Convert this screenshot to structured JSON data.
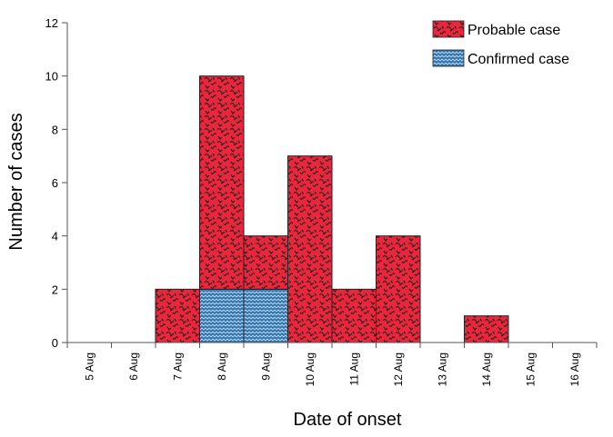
{
  "chart_data": {
    "type": "bar",
    "stacked": true,
    "xlabel": "Date of onset",
    "ylabel": "Number of cases",
    "ylim": [
      0,
      12
    ],
    "yticks": [
      0,
      2,
      4,
      6,
      8,
      10,
      12
    ],
    "categories": [
      "5 Aug",
      "6 Aug",
      "7 Aug",
      "8 Aug",
      "9 Aug",
      "10 Aug",
      "11 Aug",
      "12 Aug",
      "13 Aug",
      "14 Aug",
      "15 Aug",
      "16 Aug"
    ],
    "series": [
      {
        "name": "Confirmed case",
        "color": "#2e75b6",
        "pattern": "zigzag",
        "values": [
          0,
          0,
          0,
          2,
          2,
          0,
          0,
          0,
          0,
          0,
          0,
          0
        ]
      },
      {
        "name": "Probable case",
        "color": "#e8263c",
        "pattern": "squiggle",
        "values": [
          0,
          0,
          2,
          8,
          2,
          7,
          2,
          4,
          0,
          1,
          0,
          0
        ]
      }
    ],
    "legend": {
      "position": "top-right",
      "order": [
        "Probable case",
        "Confirmed case"
      ]
    },
    "grid": false
  }
}
